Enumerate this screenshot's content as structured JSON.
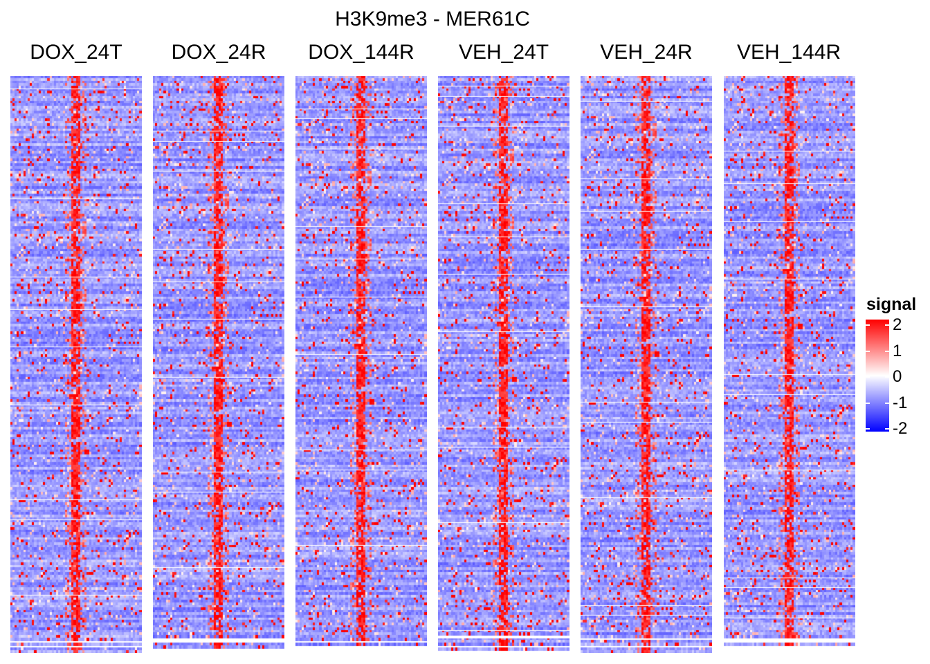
{
  "chart_data": {
    "type": "heatmap",
    "title": "H3K9me3 - MER61C",
    "panels": [
      "DOX_24T",
      "DOX_24R",
      "DOX_144R",
      "VEH_24T",
      "VEH_24R",
      "VEH_144R"
    ],
    "xlabel": "",
    "ylabel": "",
    "legend": {
      "title": "signal",
      "placement": "right",
      "range": [
        -2,
        2
      ],
      "ticks": [
        2,
        1,
        0,
        -1,
        -2
      ],
      "tick_labels": [
        "2",
        "1",
        "0",
        "-1",
        "-2"
      ]
    },
    "colors": {
      "high": "#ff0000",
      "mid": "#ffffff",
      "low": "#0000ff"
    },
    "rows_approx": 230,
    "bins_approx": 60,
    "pattern": "sparse high-signal (red) blocks scattered on a mostly low (light purple) background; a continuous high-signal band runs down the center bin of every panel"
  }
}
